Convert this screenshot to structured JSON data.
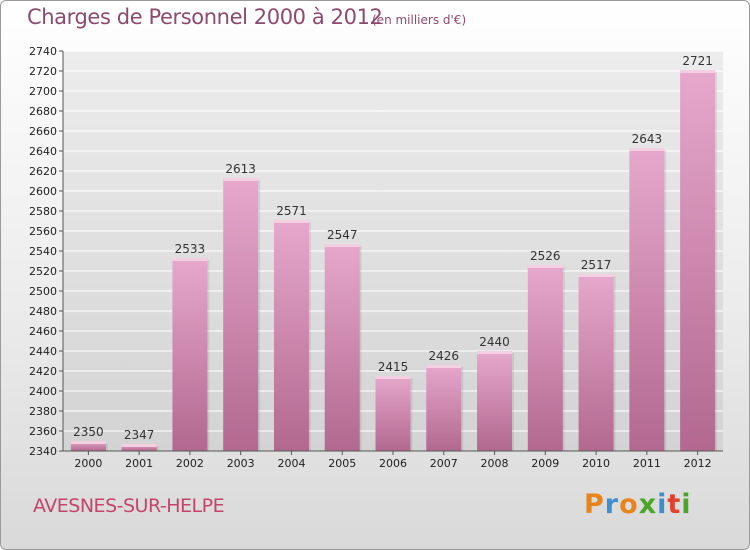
{
  "header": {
    "title": "Charges de Personnel 2000 à 2012",
    "subtitle": "(en milliers d'€)"
  },
  "footer": {
    "town": "AVESNES-SUR-HELPE",
    "logo": "Proxiti",
    "logo_colors": [
      "#e8841c",
      "#3e8fd0",
      "#e8841c",
      "#4aa52a",
      "#3e8fd0",
      "#e0402c",
      "#4aa52a"
    ]
  },
  "chart_data": {
    "type": "bar",
    "title": "Charges de Personnel 2000 à 2012",
    "subtitle": "(en milliers d'€)",
    "xlabel": "",
    "ylabel": "",
    "categories": [
      "2000",
      "2001",
      "2002",
      "2003",
      "2004",
      "2005",
      "2006",
      "2007",
      "2008",
      "2009",
      "2010",
      "2011",
      "2012"
    ],
    "values": [
      2350,
      2347,
      2533,
      2613,
      2571,
      2547,
      2415,
      2426,
      2440,
      2526,
      2517,
      2643,
      2721
    ],
    "ylim": [
      2340,
      2740
    ],
    "ytick_step": 20,
    "grid": true,
    "bar_color": "#d88cb4",
    "legend": "none"
  }
}
